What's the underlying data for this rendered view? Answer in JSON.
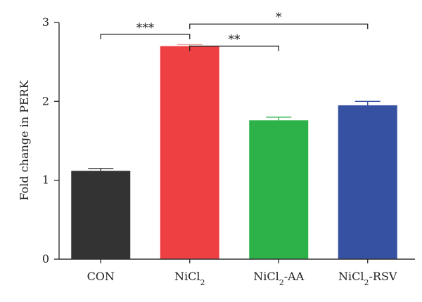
{
  "chart_data": {
    "type": "bar",
    "ylabel": "Fold change in PERK",
    "ylim": [
      0,
      3
    ],
    "yticks": [
      "0",
      "1",
      "2",
      "3"
    ],
    "grid": false,
    "categories": [
      {
        "base": "CON",
        "sub": "",
        "suffix": ""
      },
      {
        "base": "NiCl",
        "sub": "2",
        "suffix": ""
      },
      {
        "base": "NiCl",
        "sub": "2",
        "suffix": "-AA"
      },
      {
        "base": "NiCl",
        "sub": "2",
        "suffix": "-RSV"
      }
    ],
    "values": [
      1.12,
      2.7,
      1.76,
      1.95
    ],
    "errors": [
      0.03,
      0.02,
      0.04,
      0.05
    ],
    "colors": [
      "#333333",
      "#ee3f42",
      "#2db24a",
      "#3650a2"
    ],
    "errorbar_colors": [
      "#333333",
      "#e8a8a0",
      "#2db24a",
      "#3650a2"
    ],
    "significance": [
      {
        "from": 0,
        "to": 1,
        "y": 2.85,
        "label": "***"
      },
      {
        "from": 1,
        "to": 2,
        "y": 2.7,
        "label": "**"
      },
      {
        "from": 1,
        "to": 3,
        "y": 2.98,
        "label": "*"
      }
    ]
  }
}
